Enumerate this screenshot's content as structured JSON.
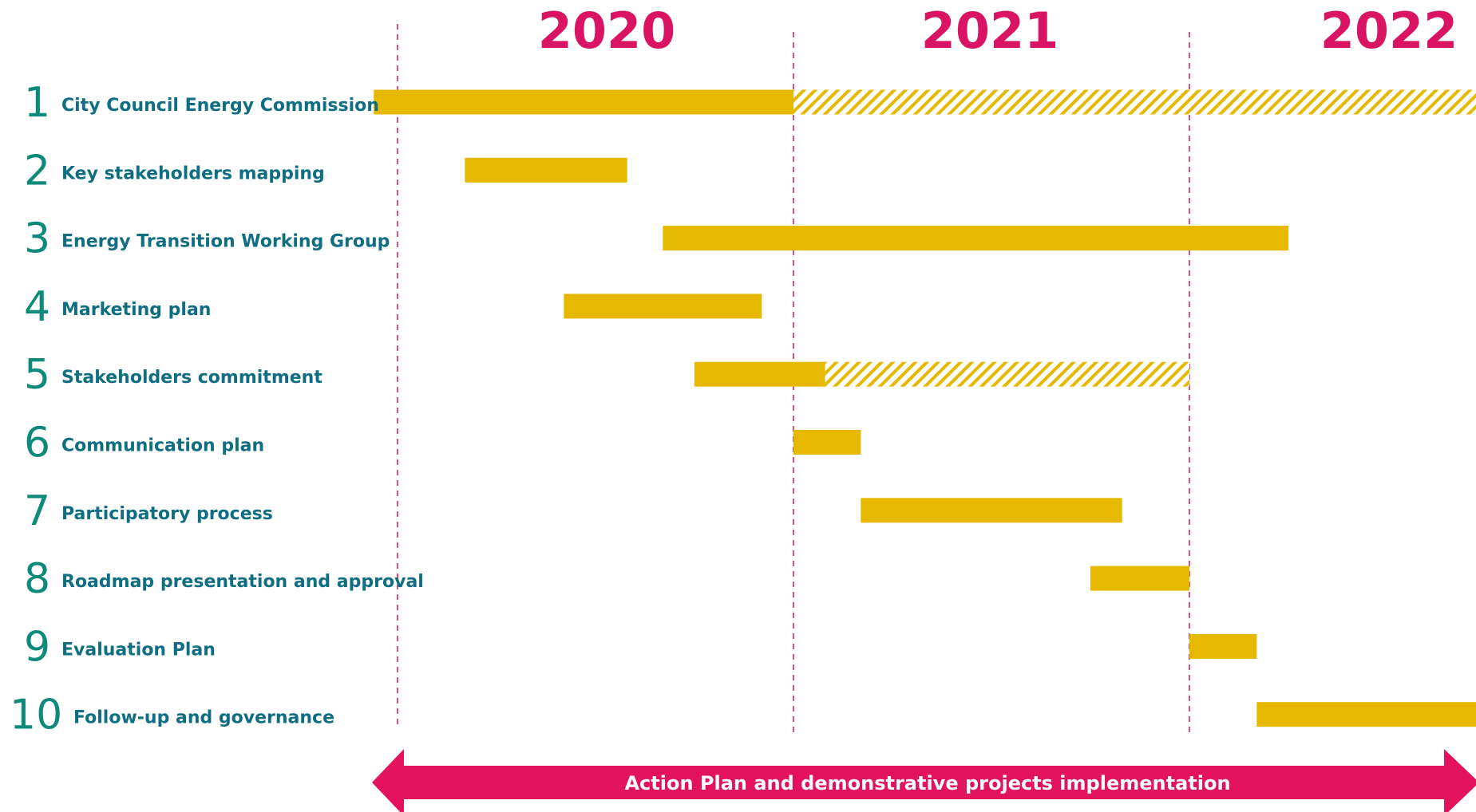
{
  "colors": {
    "year": "#D91462",
    "number": "#0E8A7A",
    "label": "#0F6E82",
    "bar": "#E6B800",
    "divider": "#E8507A",
    "arrow": "#E2125C",
    "arrow_text": "#FFFFFF"
  },
  "chart_data": {
    "type": "gantt",
    "years": [
      "2020",
      "2021",
      "2022"
    ],
    "x_unit": "year (fractional)",
    "xlim": [
      2020,
      2022.8
    ],
    "tasks": [
      {
        "num": "1",
        "label": "City Council Energy Commission",
        "start": 2019.94,
        "end": 2021.0,
        "hatched_to": 2022.8
      },
      {
        "num": "2",
        "label": "Key stakeholders mapping",
        "start": 2020.17,
        "end": 2020.58
      },
      {
        "num": "3",
        "label": "Energy Transition Working Group",
        "start": 2020.67,
        "end": 2022.25
      },
      {
        "num": "4",
        "label": "Marketing plan",
        "start": 2020.42,
        "end": 2020.92
      },
      {
        "num": "5",
        "label": "Stakeholders commitment",
        "start": 2020.75,
        "end": 2021.08,
        "hatched_to": 2022.0
      },
      {
        "num": "6",
        "label": "Communication plan",
        "start": 2021.0,
        "end": 2021.17
      },
      {
        "num": "7",
        "label": "Participatory process",
        "start": 2021.17,
        "end": 2021.83
      },
      {
        "num": "8",
        "label": "Roadmap presentation and approval",
        "start": 2021.75,
        "end": 2022.0
      },
      {
        "num": "9",
        "label": "Evaluation Plan",
        "start": 2022.0,
        "end": 2022.17
      },
      {
        "num": "10",
        "label": "Follow-up and governance",
        "start": 2022.17,
        "end": 2022.8
      }
    ],
    "arrow_label": "Action Plan and demonstrative projects implementation"
  }
}
